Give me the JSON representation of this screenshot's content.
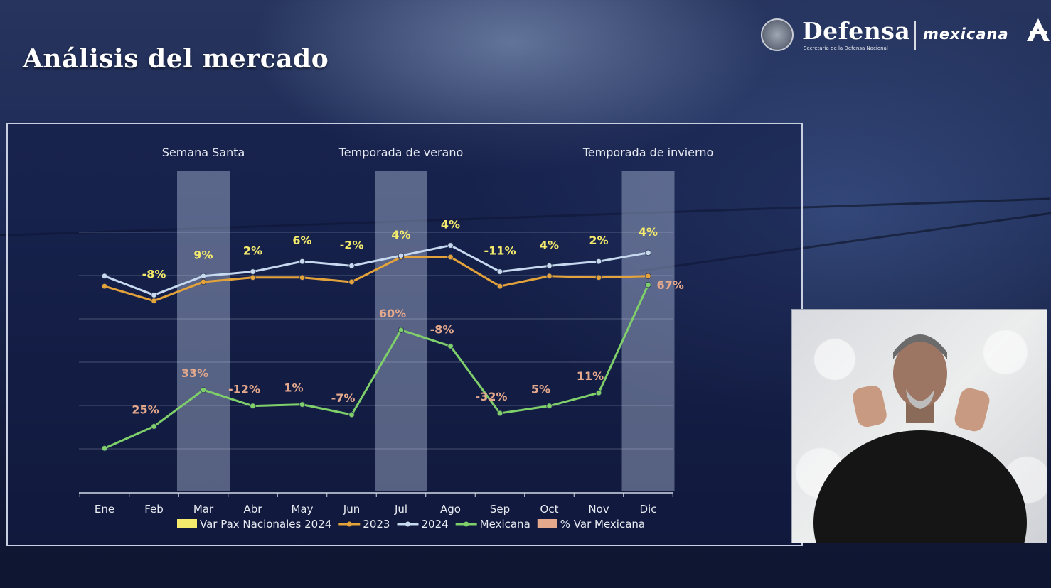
{
  "slide": {
    "title": "Análisis del mercado"
  },
  "branding": {
    "defensa": "Defensa",
    "defensa_subtitle": "Secretaría de la Defensa Nacional",
    "mexicana": "mexicana"
  },
  "chart_data": {
    "type": "line",
    "categories": [
      "Ene",
      "Feb",
      "Mar",
      "Abr",
      "May",
      "Jun",
      "Jul",
      "Ago",
      "Sep",
      "Oct",
      "Nov",
      "Dic"
    ],
    "highlight_periods": [
      {
        "label": "Semana Santa",
        "category": "Mar"
      },
      {
        "label": "Temporada de verano",
        "category": "Jul"
      },
      {
        "label": "Temporada de invierno",
        "category": "Dic"
      }
    ],
    "series": [
      {
        "name": "2023",
        "color": "#e3a33a",
        "values": [
          5.2,
          4.2,
          5.5,
          5.8,
          5.8,
          5.5,
          7.2,
          7.2,
          5.2,
          5.9,
          5.8,
          5.9
        ]
      },
      {
        "name": "2024",
        "color": "#c6d9ef",
        "values": [
          5.9,
          4.6,
          5.9,
          6.2,
          6.9,
          6.6,
          7.3,
          8.0,
          6.2,
          6.6,
          6.9,
          7.5
        ]
      },
      {
        "name": "Mexicana",
        "color": "#7fcf6b",
        "values": [
          -5.9,
          -4.4,
          -1.9,
          -3.0,
          -2.9,
          -3.6,
          2.2,
          1.1,
          -3.5,
          -3.0,
          -2.1,
          5.3
        ]
      }
    ],
    "var_pax_nacionales_2024": [
      "-8%",
      "9%",
      "2%",
      "6%",
      "-2%",
      "4%",
      "4%",
      "-11%",
      "4%",
      "2%",
      "4%"
    ],
    "var_pax_nacionales_categories": [
      "Feb",
      "Mar",
      "Abr",
      "May",
      "Jun",
      "Jul",
      "Ago",
      "Sep",
      "Oct",
      "Nov",
      "Dic"
    ],
    "pct_var_mexicana": [
      "25%",
      "33%",
      "-12%",
      "1%",
      "-7%",
      "60%",
      "-8%",
      "-32%",
      "5%",
      "11%",
      "67%"
    ],
    "pct_var_mexicana_categories": [
      "Feb",
      "Mar",
      "Abr",
      "May",
      "Jun",
      "Jul",
      "Ago",
      "Sep",
      "Oct",
      "Nov",
      "Dic"
    ],
    "legend": [
      {
        "label": "Var Pax Nacionales 2024",
        "kind": "box",
        "color": "#f4ea6b"
      },
      {
        "label": "2023",
        "kind": "line",
        "color": "#e3a33a"
      },
      {
        "label": "2024",
        "kind": "line",
        "color": "#c6d9ef"
      },
      {
        "label": "Mexicana",
        "kind": "line",
        "color": "#7fcf6b"
      },
      {
        "label": "% Var Mexicana",
        "kind": "box",
        "color": "#e4a88c"
      }
    ],
    "grid": true,
    "legend_position": "bottom"
  }
}
